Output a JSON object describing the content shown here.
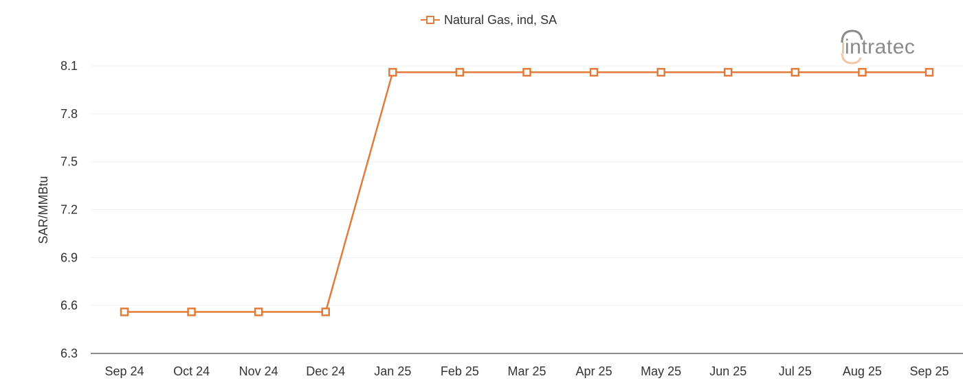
{
  "chart_data": {
    "type": "line",
    "title": "",
    "legend": {
      "entries": [
        "Natural Gas, ind, SA"
      ],
      "position": "top-center"
    },
    "xlabel": "",
    "ylabel": "SAR/MMBtu",
    "categories": [
      "Sep 24",
      "Oct 24",
      "Nov 24",
      "Dec 24",
      "Jan 25",
      "Feb 25",
      "Mar 25",
      "Apr 25",
      "May 25",
      "Jun 25",
      "Jul 25",
      "Aug 25",
      "Sep 25"
    ],
    "series": [
      {
        "name": "Natural Gas, ind, SA",
        "color": "#e07b39",
        "marker": "square-open",
        "values": [
          6.56,
          6.56,
          6.56,
          6.56,
          8.06,
          8.06,
          8.06,
          8.06,
          8.06,
          8.06,
          8.06,
          8.06,
          8.06
        ]
      }
    ],
    "ylim": [
      6.3,
      8.1
    ],
    "yticks": [
      6.3,
      6.6,
      6.9,
      7.2,
      7.5,
      7.8,
      8.1
    ],
    "ytick_labels": [
      "6.3",
      "6.6",
      "6.9",
      "7.2",
      "7.5",
      "7.8",
      "8.1"
    ],
    "grid": {
      "horizontal": true,
      "vertical": false
    }
  },
  "branding": {
    "logo_text": "intratec"
  },
  "colors": {
    "series": "#e07b39",
    "grid": "#f0f0f0",
    "axis": "#666666",
    "text": "#333333",
    "logo": "#8a8a8a",
    "logo_accent": "#f0c8a8"
  }
}
